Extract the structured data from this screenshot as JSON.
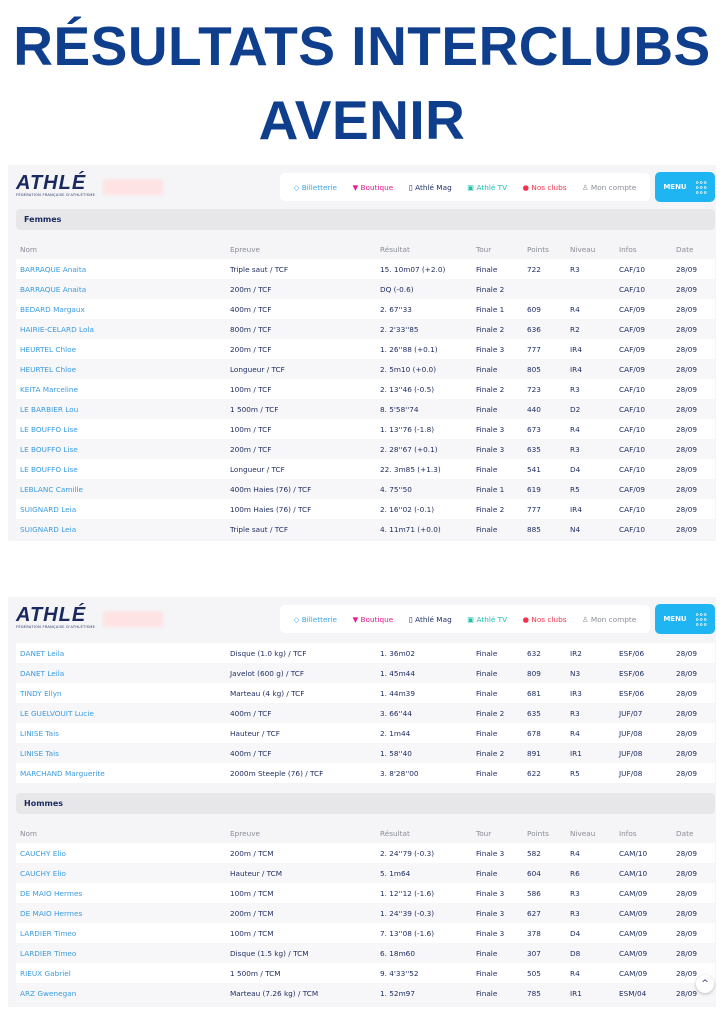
{
  "title_line1": "RÉSULTATS INTERCLUBS",
  "title_line2": "AVENIR",
  "header": {
    "logo_text": "ATHLÉ",
    "logo_sub": "FÉDÉRATION FRANÇAISE D'ATHLÉTISME",
    "nav": [
      {
        "label": "Billetterie",
        "icon": "ticket-icon",
        "color": "#3aa6e6"
      },
      {
        "label": "Boutique",
        "icon": "shirt-icon",
        "color": "#e6198f"
      },
      {
        "label": "Athlé Mag",
        "icon": "book-icon",
        "color": "#1b2a5e"
      },
      {
        "label": "Athlé TV",
        "icon": "tv-icon",
        "color": "#19c3b0"
      },
      {
        "label": "Nos clubs",
        "icon": "map-pin-icon",
        "color": "#f0334b"
      },
      {
        "label": "Mon compte",
        "icon": "user-icon",
        "color": "#8a8d99"
      }
    ],
    "menu_label": "MENU"
  },
  "columns": [
    "Nom",
    "Epreuve",
    "Résultat",
    "Tour",
    "Points",
    "Niveau",
    "Infos",
    "Date"
  ],
  "femmes": {
    "label": "Femmes",
    "rows": [
      [
        "BARRAQUE Anaita",
        "Triple saut / TCF",
        "15. 10m07 (+2.0)",
        "Finale",
        "722",
        "R3",
        "CAF/10",
        "28/09"
      ],
      [
        "BARRAQUE Anaita",
        "200m / TCF",
        "DQ (-0.6)",
        "Finale 2",
        "",
        "",
        "CAF/10",
        "28/09"
      ],
      [
        "BEDARD Margaux",
        "400m / TCF",
        "2. 67''33",
        "Finale 1",
        "609",
        "R4",
        "CAF/09",
        "28/09"
      ],
      [
        "HAIRIE-CELARD Lola",
        "800m / TCF",
        "2. 2'33''85",
        "Finale 2",
        "636",
        "R2",
        "CAF/09",
        "28/09"
      ],
      [
        "HEURTEL Chloe",
        "200m / TCF",
        "1. 26''88 (+0.1)",
        "Finale 3",
        "777",
        "IR4",
        "CAF/09",
        "28/09"
      ],
      [
        "HEURTEL Chloe",
        "Longueur / TCF",
        "2. 5m10 (+0.0)",
        "Finale",
        "805",
        "IR4",
        "CAF/09",
        "28/09"
      ],
      [
        "KEITA Marceline",
        "100m / TCF",
        "2. 13''46 (-0.5)",
        "Finale 2",
        "723",
        "R3",
        "CAF/10",
        "28/09"
      ],
      [
        "LE BARBIER Lou",
        "1 500m / TCF",
        "8. 5'58''74",
        "Finale",
        "440",
        "D2",
        "CAF/10",
        "28/09"
      ],
      [
        "LE BOUFFO Lise",
        "100m / TCF",
        "1. 13''76 (-1.8)",
        "Finale 3",
        "673",
        "R4",
        "CAF/10",
        "28/09"
      ],
      [
        "LE BOUFFO Lise",
        "200m / TCF",
        "2. 28''67 (+0.1)",
        "Finale 3",
        "635",
        "R3",
        "CAF/10",
        "28/09"
      ],
      [
        "LE BOUFFO Lise",
        "Longueur / TCF",
        "22. 3m85 (+1.3)",
        "Finale",
        "541",
        "D4",
        "CAF/10",
        "28/09"
      ],
      [
        "LEBLANC Camille",
        "400m Haies (76) / TCF",
        "4. 75''50",
        "Finale 1",
        "619",
        "R5",
        "CAF/09",
        "28/09"
      ],
      [
        "SUIGNARD Leia",
        "100m Haies (76) / TCF",
        "2. 16''02 (-0.1)",
        "Finale 2",
        "777",
        "IR4",
        "CAF/10",
        "28/09"
      ],
      [
        "SUIGNARD Leia",
        "Triple saut / TCF",
        "4. 11m71 (+0.0)",
        "Finale",
        "885",
        "N4",
        "CAF/10",
        "28/09"
      ]
    ]
  },
  "femmes_cont": {
    "rows": [
      [
        "DANET Leila",
        "Disque (1.0 kg) / TCF",
        "1. 36m02",
        "Finale",
        "632",
        "IR2",
        "ESF/06",
        "28/09"
      ],
      [
        "DANET Leila",
        "Javelot (600 g) / TCF",
        "1. 45m44",
        "Finale",
        "809",
        "N3",
        "ESF/06",
        "28/09"
      ],
      [
        "TINDY Ellyn",
        "Marteau (4 kg) / TCF",
        "1. 44m39",
        "Finale",
        "681",
        "IR3",
        "ESF/06",
        "28/09"
      ],
      [
        "LE GUELVOUIT Lucie",
        "400m / TCF",
        "3. 66''44",
        "Finale 2",
        "635",
        "R3",
        "JUF/07",
        "28/09"
      ],
      [
        "LINISE Tais",
        "Hauteur / TCF",
        "2. 1m44",
        "Finale",
        "678",
        "R4",
        "JUF/08",
        "28/09"
      ],
      [
        "LINISE Tais",
        "400m / TCF",
        "1. 58''40",
        "Finale 2",
        "891",
        "IR1",
        "JUF/08",
        "28/09"
      ],
      [
        "MARCHAND Marguerite",
        "2000m Steeple (76) / TCF",
        "3. 8'28''00",
        "Finale",
        "622",
        "R5",
        "JUF/08",
        "28/09"
      ]
    ]
  },
  "hommes": {
    "label": "Hommes",
    "rows": [
      [
        "CAUCHY Elio",
        "200m / TCM",
        "2. 24''79 (-0.3)",
        "Finale 3",
        "582",
        "R4",
        "CAM/10",
        "28/09"
      ],
      [
        "CAUCHY Elio",
        "Hauteur / TCM",
        "5. 1m64",
        "Finale",
        "604",
        "R6",
        "CAM/10",
        "28/09"
      ],
      [
        "DE MAIO Hermes",
        "100m / TCM",
        "1. 12''12 (-1.6)",
        "Finale 3",
        "586",
        "R3",
        "CAM/09",
        "28/09"
      ],
      [
        "DE MAIO Hermes",
        "200m / TCM",
        "1. 24''39 (-0.3)",
        "Finale 3",
        "627",
        "R3",
        "CAM/09",
        "28/09"
      ],
      [
        "LARDIER Timeo",
        "100m / TCM",
        "7. 13''08 (-1.6)",
        "Finale 3",
        "378",
        "D4",
        "CAM/09",
        "28/09"
      ],
      [
        "LARDIER Timeo",
        "Disque (1.5 kg) / TCM",
        "6. 18m60",
        "Finale",
        "307",
        "D8",
        "CAM/09",
        "28/09"
      ],
      [
        "RIEUX Gabriel",
        "1 500m / TCM",
        "9. 4'33''52",
        "Finale",
        "505",
        "R4",
        "CAM/09",
        "28/09"
      ],
      [
        "ARZ Gwenegan",
        "Marteau (7.26 kg) / TCM",
        "1. 52m97",
        "Finale",
        "785",
        "IR1",
        "ESM/04",
        "28/09"
      ]
    ]
  },
  "scroll_top_icon": "chevron-up-icon"
}
